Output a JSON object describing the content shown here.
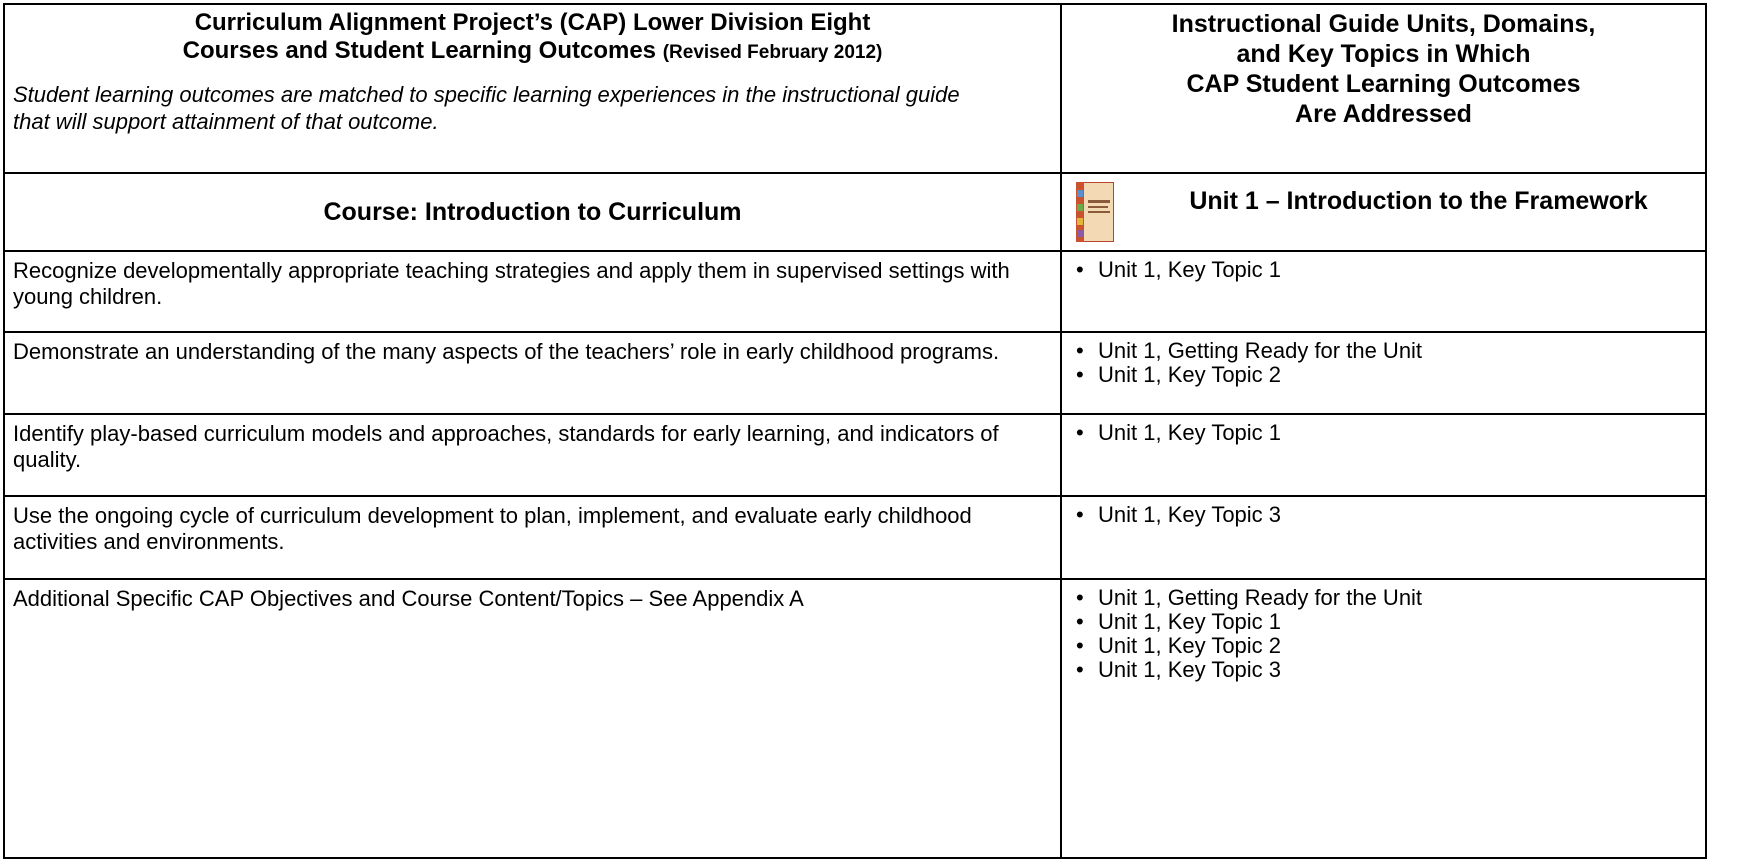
{
  "header": {
    "left": {
      "title_lines": [
        "Curriculum Alignment Project’s (CAP) Lower Division Eight",
        "Courses and Student Learning Outcomes"
      ],
      "revised": "(Revised February 2012)",
      "note": "Student learning outcomes are matched to specific learning experiences in the instructional guide that will support attainment of that outcome."
    },
    "right": {
      "title_lines": [
        "Instructional Guide Units, Domains,",
        "and Key Topics in Which",
        "CAP Student Learning Outcomes",
        "Are Addressed"
      ]
    }
  },
  "course": {
    "title": "Course:  Introduction to Curriculum",
    "unit": "Unit 1 – Introduction to the Framework"
  },
  "rows": [
    {
      "outcome": "Recognize developmentally appropriate teaching strategies and apply them in supervised settings with young children.",
      "topics": [
        "Unit 1, Key Topic 1"
      ]
    },
    {
      "outcome": "Demonstrate an understanding of the many aspects of the teachers’ role in early childhood programs.",
      "topics": [
        "Unit 1, Getting Ready for the Unit",
        "Unit 1, Key Topic 2"
      ]
    },
    {
      "outcome": "Identify play-based curriculum models and approaches, standards for early learning, and indicators of quality.",
      "topics": [
        "Unit 1, Key Topic 1"
      ]
    },
    {
      "outcome": "Use the ongoing cycle of curriculum development to plan, implement, and evaluate early childhood activities and environments.",
      "topics": [
        "Unit 1, Key Topic 3"
      ]
    },
    {
      "outcome": "Additional Specific CAP Objectives and Course Content/Topics – See Appendix A",
      "topics": [
        "Unit 1, Getting Ready for the Unit",
        "Unit 1, Key Topic 1",
        "Unit 1, Key Topic 2",
        "Unit 1, Key Topic 3"
      ]
    }
  ]
}
